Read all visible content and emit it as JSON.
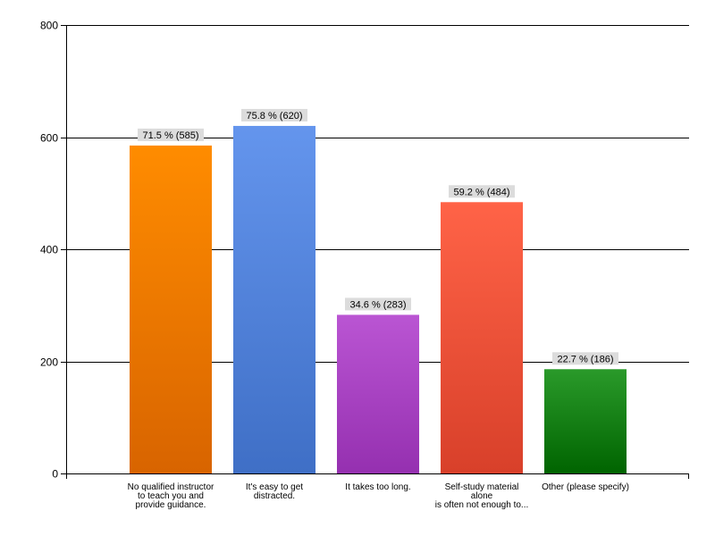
{
  "chart_data": {
    "type": "bar",
    "title": "",
    "xlabel": "",
    "ylabel": "",
    "ylim": [
      0,
      800
    ],
    "yticks": [
      0,
      200,
      400,
      600,
      800
    ],
    "grid": true,
    "categories": [
      "No qualified instructor to teach you and provide guidance.",
      "It's easy to get distracted.",
      "It takes too long.",
      "Self-study material alone is often not enough to...",
      "Other (please specify)"
    ],
    "category_label_lines": [
      [
        "No qualified instructor",
        "to teach you and",
        "provide guidance."
      ],
      [
        "It's easy to get",
        "distracted."
      ],
      [
        "It takes too long."
      ],
      [
        "Self-study material",
        "alone",
        "is often not enough to..."
      ],
      [
        "Other (please specify)"
      ]
    ],
    "values": [
      585,
      620,
      283,
      484,
      186
    ],
    "data_labels": [
      "71.5 % (585)",
      "75.8 % (620)",
      "34.6 % (283)",
      "59.2 % (484)",
      "22.7 % (186)"
    ],
    "colors": [
      [
        "#ff8c00",
        "#d86400"
      ],
      [
        "#6495ed",
        "#3f6fc6"
      ],
      [
        "#ba55d3",
        "#9530b0"
      ],
      [
        "#ff6347",
        "#d8402a"
      ],
      [
        "#2a9a2a",
        "#006400"
      ]
    ]
  }
}
